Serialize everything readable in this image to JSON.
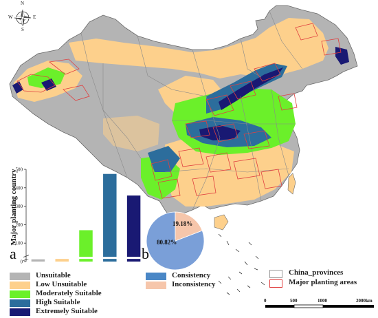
{
  "compass": {
    "n": "N",
    "s": "S",
    "e": "E",
    "w": "W"
  },
  "panel_labels": {
    "a": "a",
    "b": "b"
  },
  "chart_data": [
    {
      "type": "bar",
      "panel": "a",
      "ylabel": "Major planting country",
      "categories": [
        "Unsuitable",
        "Low Unsuitable",
        "Moderately Suitable",
        "High Suitable",
        "Extremely Suitable"
      ],
      "values": [
        12,
        22,
        170,
        475,
        358
      ],
      "colors": [
        "#b4b4b4",
        "#fdd08c",
        "#6bf02a",
        "#2c6d9c",
        "#191973"
      ],
      "ylim": [
        0,
        500
      ],
      "yticks": [
        "0",
        "100",
        "200",
        "300",
        "400",
        "500"
      ],
      "axis_break": true
    },
    {
      "type": "pie",
      "panel": "b",
      "slices": [
        {
          "label": "Consistency",
          "value": 80.82,
          "text": "80.82%",
          "color": "#7a9fd8"
        },
        {
          "label": "Inconsistency",
          "value": 19.18,
          "text": "19.18%",
          "color": "#f6c6ab"
        }
      ]
    }
  ],
  "legend_suitability": [
    {
      "label": "Unsuitable",
      "color": "#b4b4b4"
    },
    {
      "label": "Low Unsuitable",
      "color": "#fdd08c"
    },
    {
      "label": "Moderately Suitable",
      "color": "#6bf02a"
    },
    {
      "label": "High Suitable",
      "color": "#2c6d9c"
    },
    {
      "label": "Extremely Suitable",
      "color": "#191973"
    }
  ],
  "legend_pie": [
    {
      "label": "Consistency",
      "color": "#4a87c6"
    },
    {
      "label": "Inconsistency",
      "color": "#f6c6ab"
    }
  ],
  "legend_map": [
    {
      "label": "China_provinces",
      "stroke": "#9a9a9a"
    },
    {
      "label": "Major planting areas",
      "stroke": "#e04040"
    }
  ],
  "scale_bar": {
    "ticks": [
      "0",
      "500",
      "1000",
      "2000km"
    ]
  },
  "colors": {
    "unsuitable": "#b4b4b4",
    "low": "#fdd08c",
    "moderate": "#6bf02a",
    "high": "#2c6d9c",
    "extreme": "#191973",
    "planting_outline": "#e04040",
    "province_line": "#8a8a8a"
  }
}
